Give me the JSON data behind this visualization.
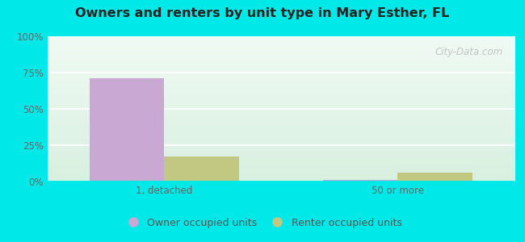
{
  "title": "Owners and renters by unit type in Mary Esther, FL",
  "categories": [
    "1, detached",
    "50 or more"
  ],
  "owner_values": [
    71,
    1
  ],
  "renter_values": [
    17,
    6
  ],
  "owner_color": "#c9a8d4",
  "renter_color": "#c2c882",
  "background_top": "#f0faf4",
  "background_bottom": "#d8f0e0",
  "outer_background": "#00e8e8",
  "ylim": [
    0,
    100
  ],
  "yticks": [
    0,
    25,
    50,
    75,
    100
  ],
  "yticklabels": [
    "0%",
    "25%",
    "50%",
    "75%",
    "100%"
  ],
  "legend_owner": "Owner occupied units",
  "legend_renter": "Renter occupied units",
  "bar_width": 0.32,
  "watermark": "City-Data.com"
}
